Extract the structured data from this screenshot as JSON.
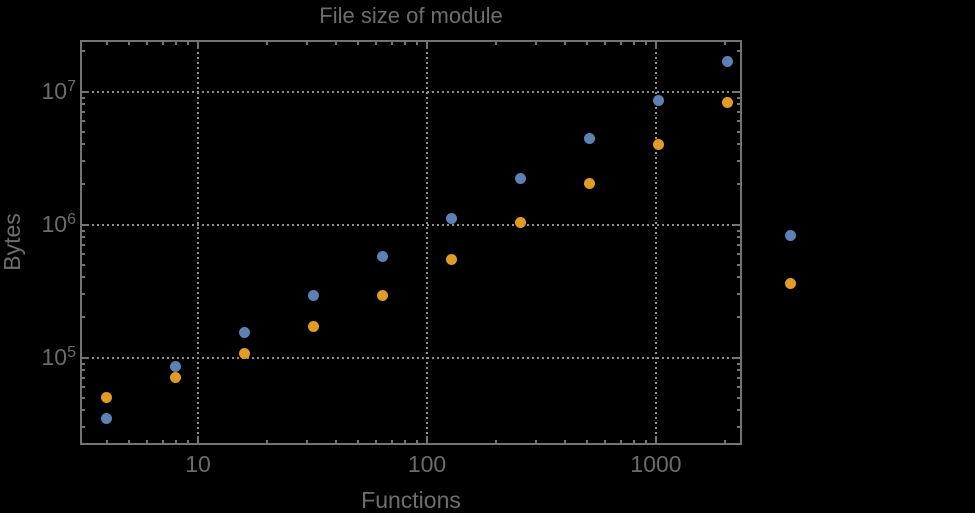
{
  "title": "File size of module",
  "colors": {
    "series1": "#5e81b5",
    "series2": "#e19c24",
    "frame": "#747474",
    "gridline": "#8f8f8f",
    "text": "#6b6b6b",
    "background": "#000000"
  },
  "chart_data": {
    "type": "scatter",
    "title": "File size of module",
    "xlabel": "Functions",
    "ylabel": "Bytes",
    "x_scale": "log",
    "y_scale": "log",
    "x_range": [
      3.1,
      2349
    ],
    "y_range": [
      22500,
      24000000
    ],
    "grid": "dotted",
    "legend_position": "none",
    "x_ticks": [
      {
        "label": "10",
        "value": 10
      },
      {
        "label": "100",
        "value": 100
      },
      {
        "label": "1000",
        "value": 1000
      }
    ],
    "y_ticks": [
      {
        "base": "10",
        "exp": "5",
        "value": 100000
      },
      {
        "base": "10",
        "exp": "6",
        "value": 1000000
      },
      {
        "base": "10",
        "exp": "7",
        "value": 10000000
      }
    ],
    "series": [
      {
        "name": "series-1-blue",
        "color": "#5e81b5",
        "x": [
          4,
          8,
          16,
          32,
          64,
          128,
          256,
          512,
          1024,
          2048
        ],
        "y": [
          34500,
          86000,
          153000,
          295000,
          570000,
          1100000,
          2200000,
          4400000,
          8600000,
          16700000
        ]
      },
      {
        "name": "series-2-orange",
        "color": "#e19c24",
        "x": [
          4,
          8,
          16,
          32,
          64,
          128,
          256,
          512,
          1024,
          2048
        ],
        "y": [
          50000,
          71000,
          108000,
          172000,
          295000,
          550000,
          1030000,
          2050000,
          4000000,
          8200000
        ]
      }
    ],
    "unlabeled_markers_right_of_frame": [
      {
        "series": "series-1-blue",
        "color": "#5e81b5",
        "approx_value": 830000
      },
      {
        "series": "series-2-orange",
        "color": "#e19c24",
        "approx_value": 360000
      }
    ]
  }
}
